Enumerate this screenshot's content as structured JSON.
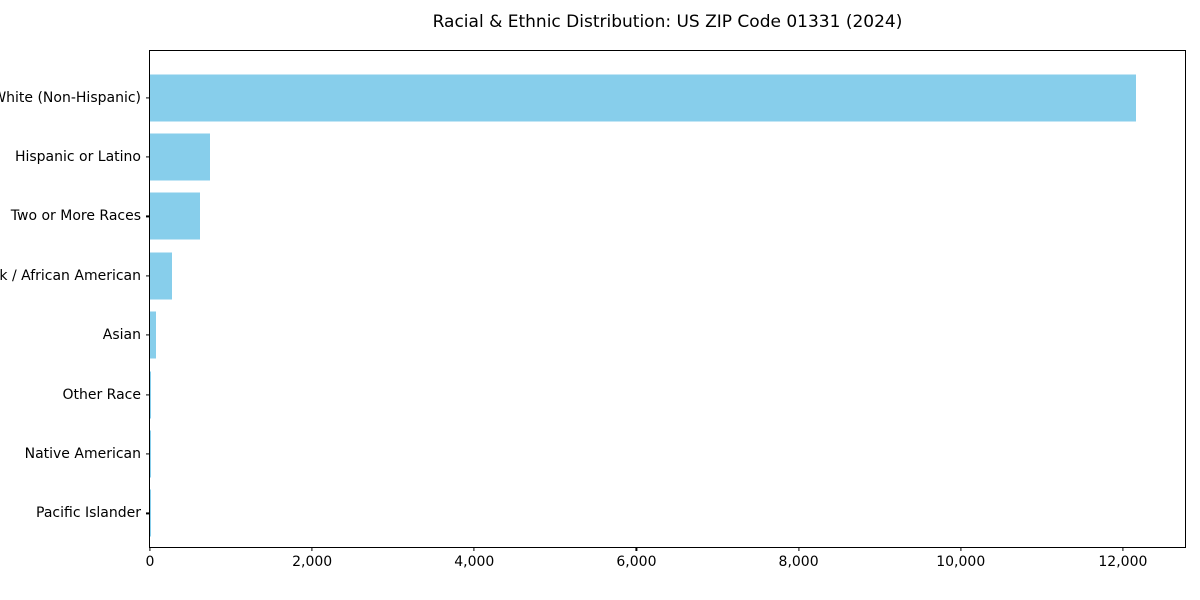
{
  "chart_data": {
    "type": "bar",
    "orientation": "horizontal",
    "title": "Racial & Ethnic Distribution: US ZIP Code 01331 (2024)",
    "categories": [
      "White (Non-Hispanic)",
      "Hispanic or Latino",
      "Two or More Races",
      "Black / African American",
      "Asian",
      "Other Race",
      "Native American",
      "Pacific Islander"
    ],
    "values": [
      12160,
      740,
      620,
      270,
      70,
      12,
      4,
      2
    ],
    "bar_color": "#87CEEB",
    "xlabel": "",
    "ylabel": "",
    "xlim": [
      0,
      12766
    ],
    "xticks": [
      0,
      2000,
      4000,
      6000,
      8000,
      10000,
      12000
    ],
    "xtick_labels": [
      "0",
      "2,000",
      "4,000",
      "6,000",
      "8,000",
      "10,000",
      "12,000"
    ],
    "grid": false,
    "legend": null,
    "spine_color": "#000000",
    "background_color": "#ffffff"
  }
}
